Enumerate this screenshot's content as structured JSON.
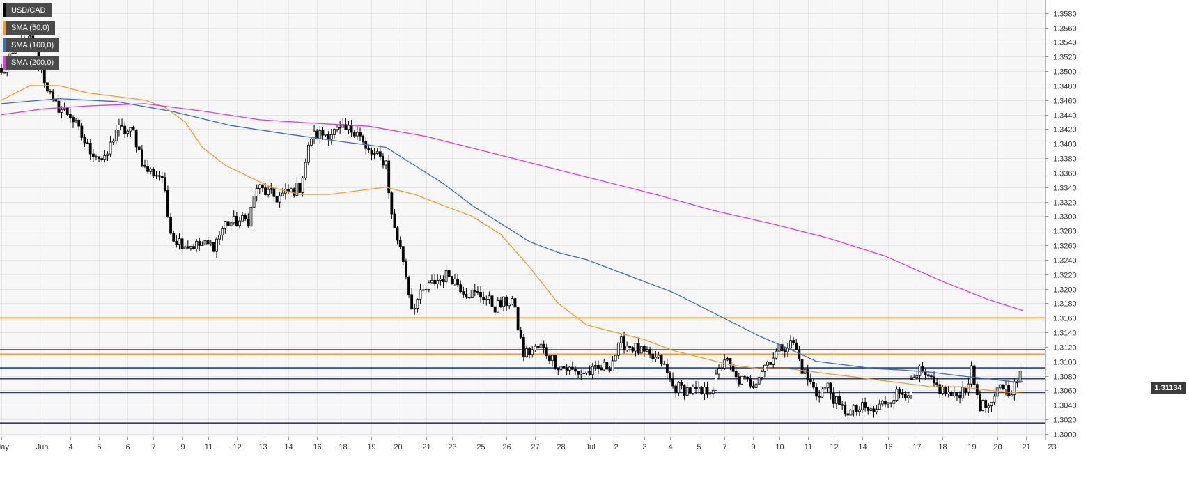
{
  "chart_data": {
    "type": "candlestick",
    "symbol": "USD/CAD",
    "ylim": [
      1.2996,
      1.3598
    ],
    "y_ticks": [
      "1.3580",
      "1.3560",
      "1.3540",
      "1.3520",
      "1.3500",
      "1.3480",
      "1.3460",
      "1.3440",
      "1.3420",
      "1.3400",
      "1.3380",
      "1.3360",
      "1.3340",
      "1.3320",
      "1.3300",
      "1.3280",
      "1.3260",
      "1.3240",
      "1.3220",
      "1.3200",
      "1.3180",
      "1.3160",
      "1.3140",
      "1.3120",
      "1.3100",
      "1.3080",
      "1.3060",
      "1.3040",
      "1.3020",
      "1.3000"
    ],
    "x_ticks": [
      {
        "label": "May",
        "index": 0
      },
      {
        "label": "Jun",
        "index": 14
      },
      {
        "label": "4",
        "index": 24
      },
      {
        "label": "5",
        "index": 34
      },
      {
        "label": "6",
        "index": 44
      },
      {
        "label": "7",
        "index": 53
      },
      {
        "label": "9",
        "index": 63
      },
      {
        "label": "11",
        "index": 72
      },
      {
        "label": "12",
        "index": 82
      },
      {
        "label": "13",
        "index": 91
      },
      {
        "label": "14",
        "index": 100
      },
      {
        "label": "16",
        "index": 110
      },
      {
        "label": "18",
        "index": 119
      },
      {
        "label": "19",
        "index": 129
      },
      {
        "label": "20",
        "index": 138
      },
      {
        "label": "21",
        "index": 148
      },
      {
        "label": "23",
        "index": 157
      },
      {
        "label": "25",
        "index": 167
      },
      {
        "label": "26",
        "index": 176
      },
      {
        "label": "27",
        "index": 186
      },
      {
        "label": "28",
        "index": 195
      },
      {
        "label": "Jul",
        "index": 205
      },
      {
        "label": "2",
        "index": 214
      },
      {
        "label": "3",
        "index": 224
      },
      {
        "label": "4",
        "index": 233
      },
      {
        "label": "5",
        "index": 243
      },
      {
        "label": "7",
        "index": 252
      },
      {
        "label": "9",
        "index": 262
      },
      {
        "label": "10",
        "index": 271
      },
      {
        "label": "11",
        "index": 281
      },
      {
        "label": "12",
        "index": 290
      },
      {
        "label": "14",
        "index": 300
      },
      {
        "label": "16",
        "index": 309
      },
      {
        "label": "17",
        "index": 319
      },
      {
        "label": "18",
        "index": 328
      },
      {
        "label": "19",
        "index": 338
      },
      {
        "label": "20",
        "index": 347
      },
      {
        "label": "21",
        "index": 357
      },
      {
        "label": "23",
        "index": 366
      }
    ],
    "candle_count": 356,
    "anchors": [
      {
        "i": 0,
        "p": 1.3495
      },
      {
        "i": 6,
        "p": 1.3535
      },
      {
        "i": 10,
        "p": 1.3545
      },
      {
        "i": 14,
        "p": 1.35
      },
      {
        "i": 18,
        "p": 1.3455
      },
      {
        "i": 24,
        "p": 1.344
      },
      {
        "i": 30,
        "p": 1.3395
      },
      {
        "i": 36,
        "p": 1.3375
      },
      {
        "i": 40,
        "p": 1.342
      },
      {
        "i": 46,
        "p": 1.3415
      },
      {
        "i": 50,
        "p": 1.3365
      },
      {
        "i": 56,
        "p": 1.3355
      },
      {
        "i": 58,
        "p": 1.33
      },
      {
        "i": 60,
        "p": 1.327
      },
      {
        "i": 65,
        "p": 1.326
      },
      {
        "i": 74,
        "p": 1.326
      },
      {
        "i": 78,
        "p": 1.329
      },
      {
        "i": 86,
        "p": 1.3295
      },
      {
        "i": 89,
        "p": 1.334
      },
      {
        "i": 96,
        "p": 1.3325
      },
      {
        "i": 104,
        "p": 1.334
      },
      {
        "i": 108,
        "p": 1.341
      },
      {
        "i": 114,
        "p": 1.3415
      },
      {
        "i": 124,
        "p": 1.342
      },
      {
        "i": 127,
        "p": 1.339
      },
      {
        "i": 134,
        "p": 1.3375
      },
      {
        "i": 136,
        "p": 1.33
      },
      {
        "i": 140,
        "p": 1.324
      },
      {
        "i": 143,
        "p": 1.3175
      },
      {
        "i": 147,
        "p": 1.3195
      },
      {
        "i": 151,
        "p": 1.321
      },
      {
        "i": 156,
        "p": 1.322
      },
      {
        "i": 162,
        "p": 1.3195
      },
      {
        "i": 168,
        "p": 1.319
      },
      {
        "i": 172,
        "p": 1.3175
      },
      {
        "i": 178,
        "p": 1.3185
      },
      {
        "i": 182,
        "p": 1.311
      },
      {
        "i": 188,
        "p": 1.312
      },
      {
        "i": 194,
        "p": 1.3095
      },
      {
        "i": 200,
        "p": 1.3085
      },
      {
        "i": 206,
        "p": 1.3085
      },
      {
        "i": 212,
        "p": 1.3095
      },
      {
        "i": 216,
        "p": 1.3125
      },
      {
        "i": 220,
        "p": 1.312
      },
      {
        "i": 226,
        "p": 1.3105
      },
      {
        "i": 230,
        "p": 1.31
      },
      {
        "i": 234,
        "p": 1.3065
      },
      {
        "i": 240,
        "p": 1.306
      },
      {
        "i": 244,
        "p": 1.3055
      },
      {
        "i": 248,
        "p": 1.3065
      },
      {
        "i": 252,
        "p": 1.3105
      },
      {
        "i": 256,
        "p": 1.3075
      },
      {
        "i": 262,
        "p": 1.307
      },
      {
        "i": 266,
        "p": 1.3095
      },
      {
        "i": 272,
        "p": 1.312
      },
      {
        "i": 276,
        "p": 1.3125
      },
      {
        "i": 279,
        "p": 1.309
      },
      {
        "i": 284,
        "p": 1.3055
      },
      {
        "i": 288,
        "p": 1.3065
      },
      {
        "i": 292,
        "p": 1.3035
      },
      {
        "i": 296,
        "p": 1.303
      },
      {
        "i": 300,
        "p": 1.3035
      },
      {
        "i": 304,
        "p": 1.303
      },
      {
        "i": 308,
        "p": 1.3045
      },
      {
        "i": 312,
        "p": 1.3055
      },
      {
        "i": 316,
        "p": 1.306
      },
      {
        "i": 320,
        "p": 1.3085
      },
      {
        "i": 324,
        "p": 1.307
      },
      {
        "i": 328,
        "p": 1.306
      },
      {
        "i": 332,
        "p": 1.305
      },
      {
        "i": 336,
        "p": 1.3065
      },
      {
        "i": 338,
        "p": 1.3085
      },
      {
        "i": 341,
        "p": 1.304
      },
      {
        "i": 345,
        "p": 1.3035
      },
      {
        "i": 348,
        "p": 1.307
      },
      {
        "i": 351,
        "p": 1.306
      },
      {
        "i": 353,
        "p": 1.3065
      },
      {
        "i": 355,
        "p": 1.308
      },
      {
        "i": 356,
        "p": 1.311
      },
      {
        "i": 359,
        "p": 1.3113
      }
    ],
    "moving_averages": [
      {
        "name": "SMA (50,0)",
        "color": "#f39c2b",
        "points": [
          [
            0,
            1.346
          ],
          [
            10,
            1.348
          ],
          [
            20,
            1.348
          ],
          [
            30,
            1.347
          ],
          [
            40,
            1.3465
          ],
          [
            50,
            1.346
          ],
          [
            57,
            1.345
          ],
          [
            64,
            1.343
          ],
          [
            70,
            1.3395
          ],
          [
            78,
            1.337
          ],
          [
            86,
            1.3355
          ],
          [
            94,
            1.334
          ],
          [
            104,
            1.333
          ],
          [
            114,
            1.333
          ],
          [
            124,
            1.3335
          ],
          [
            134,
            1.334
          ],
          [
            144,
            1.333
          ],
          [
            154,
            1.3315
          ],
          [
            164,
            1.33
          ],
          [
            174,
            1.3275
          ],
          [
            184,
            1.323
          ],
          [
            194,
            1.318
          ],
          [
            204,
            1.315
          ],
          [
            214,
            1.314
          ],
          [
            224,
            1.313
          ],
          [
            234,
            1.3115
          ],
          [
            244,
            1.3105
          ],
          [
            254,
            1.3095
          ],
          [
            264,
            1.309
          ],
          [
            274,
            1.309
          ],
          [
            284,
            1.3085
          ],
          [
            294,
            1.308
          ],
          [
            304,
            1.3075
          ],
          [
            314,
            1.307
          ],
          [
            324,
            1.3065
          ],
          [
            334,
            1.3065
          ],
          [
            344,
            1.306
          ],
          [
            352,
            1.3057
          ],
          [
            356,
            1.3058
          ]
        ]
      },
      {
        "name": "SMA (100,0)",
        "color": "#3a6ec0",
        "points": [
          [
            0,
            1.3455
          ],
          [
            20,
            1.3462
          ],
          [
            40,
            1.3458
          ],
          [
            60,
            1.3444
          ],
          [
            80,
            1.3425
          ],
          [
            100,
            1.3413
          ],
          [
            120,
            1.3402
          ],
          [
            134,
            1.3395
          ],
          [
            144,
            1.337
          ],
          [
            154,
            1.3345
          ],
          [
            164,
            1.3315
          ],
          [
            174,
            1.329
          ],
          [
            184,
            1.3265
          ],
          [
            194,
            1.325
          ],
          [
            204,
            1.324
          ],
          [
            214,
            1.3225
          ],
          [
            224,
            1.321
          ],
          [
            234,
            1.3195
          ],
          [
            244,
            1.3175
          ],
          [
            254,
            1.3155
          ],
          [
            264,
            1.3135
          ],
          [
            274,
            1.3118
          ],
          [
            284,
            1.31
          ],
          [
            294,
            1.3095
          ],
          [
            304,
            1.309
          ],
          [
            314,
            1.3088
          ],
          [
            324,
            1.3085
          ],
          [
            334,
            1.308
          ],
          [
            344,
            1.3076
          ],
          [
            352,
            1.3072
          ],
          [
            356,
            1.3072
          ]
        ]
      },
      {
        "name": "SMA (200,0)",
        "color": "#e03cd8",
        "points": [
          [
            0,
            1.344
          ],
          [
            15,
            1.3448
          ],
          [
            30,
            1.3452
          ],
          [
            50,
            1.3455
          ],
          [
            70,
            1.3445
          ],
          [
            90,
            1.3433
          ],
          [
            110,
            1.3428
          ],
          [
            128,
            1.3424
          ],
          [
            148,
            1.341
          ],
          [
            168,
            1.339
          ],
          [
            188,
            1.337
          ],
          [
            208,
            1.335
          ],
          [
            228,
            1.333
          ],
          [
            248,
            1.3308
          ],
          [
            268,
            1.329
          ],
          [
            288,
            1.327
          ],
          [
            308,
            1.3245
          ],
          [
            328,
            1.321
          ],
          [
            344,
            1.3185
          ],
          [
            356,
            1.317
          ]
        ]
      }
    ],
    "horizontal_levels": [
      {
        "price": 1.316,
        "color": "#f39c2b"
      },
      {
        "price": 1.3116,
        "color": "#3c3c3c"
      },
      {
        "price": 1.311,
        "color": "#f39c2b"
      },
      {
        "price": 1.3091,
        "color": "#1f3f8f"
      },
      {
        "price": 1.3076,
        "color": "#1f3f8f"
      },
      {
        "price": 1.3057,
        "color": "#1f3f8f"
      },
      {
        "price": 1.3015,
        "color": "#1f3f8f"
      }
    ],
    "last_price": "1.31134"
  },
  "legend": [
    {
      "label": "USD/CAD",
      "color": "#000000"
    },
    {
      "label": "SMA (50,0)",
      "color": "#f39c2b"
    },
    {
      "label": "SMA (100,0)",
      "color": "#3a6ec0"
    },
    {
      "label": "SMA (200,0)",
      "color": "#e03cd8"
    }
  ],
  "price_tag": "1.31134"
}
